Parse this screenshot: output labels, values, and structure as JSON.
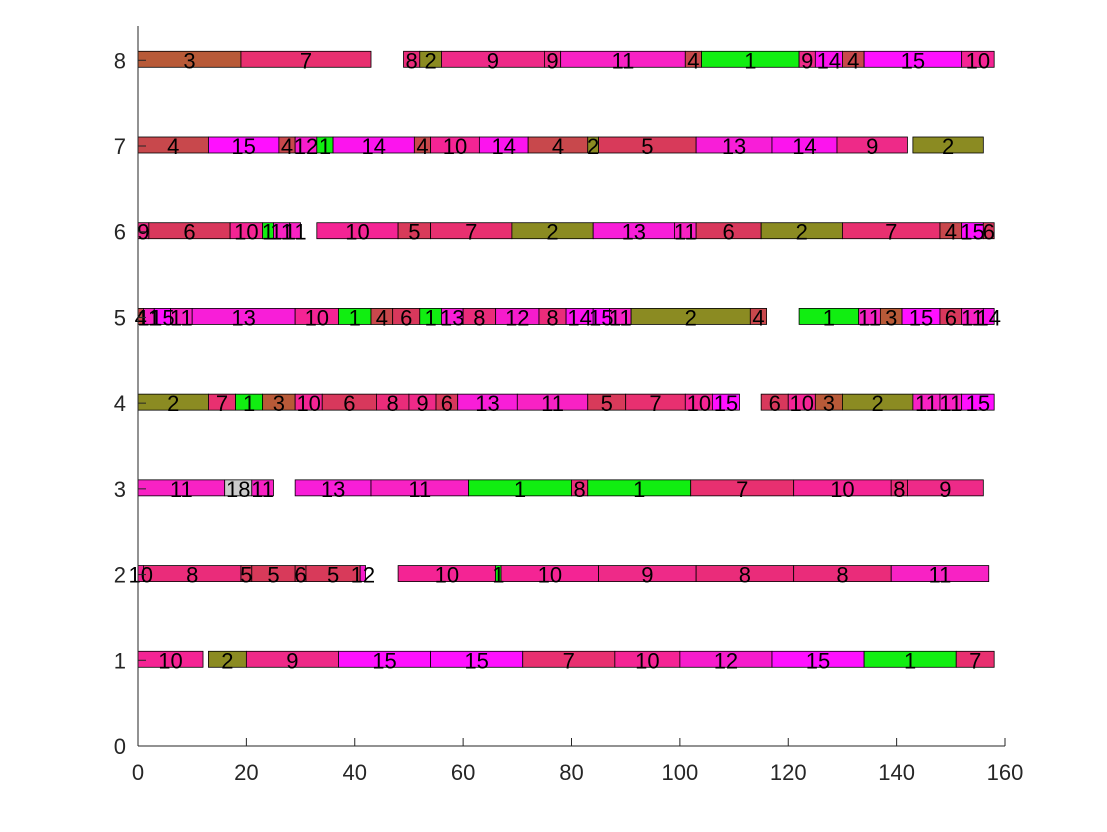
{
  "chart_data": {
    "type": "gantt",
    "title": "",
    "xlabel": "",
    "ylabel": "",
    "xlim": [
      0,
      160
    ],
    "ylim": [
      0,
      8.4
    ],
    "xticks": [
      0,
      20,
      40,
      60,
      80,
      100,
      120,
      140,
      160
    ],
    "yticks": [
      0,
      1,
      2,
      3,
      4,
      5,
      6,
      7,
      8
    ],
    "grid": false,
    "colors": {
      "1": "#11EE11",
      "2": "#8B8B22",
      "3": "#B85A38",
      "4": "#C8484C",
      "5": "#D83A5A",
      "6": "#D8385C",
      "7": "#E83070",
      "8": "#EA2C7A",
      "9": "#EE2A88",
      "10": "#F42494",
      "11": "#F822C4",
      "12": "#F61CCC",
      "13": "#F81ED8",
      "14": "#FC14EE",
      "15": "#FF10FF"
    },
    "rows": [
      {
        "y": 1,
        "tasks": [
          {
            "start": 0,
            "end": 12,
            "job": "10"
          },
          {
            "start": 13,
            "end": 20,
            "job": "2"
          },
          {
            "start": 20,
            "end": 37,
            "job": "9"
          },
          {
            "start": 37,
            "end": 54,
            "job": "15"
          },
          {
            "start": 54,
            "end": 71,
            "job": "15"
          },
          {
            "start": 71,
            "end": 88,
            "job": "7"
          },
          {
            "start": 88,
            "end": 100,
            "job": "10"
          },
          {
            "start": 100,
            "end": 117,
            "job": "12"
          },
          {
            "start": 117,
            "end": 134,
            "job": "15"
          },
          {
            "start": 134,
            "end": 151,
            "job": "1"
          },
          {
            "start": 151,
            "end": 158,
            "job": "7"
          }
        ]
      },
      {
        "y": 2,
        "tasks": [
          {
            "start": 0,
            "end": 1,
            "job": "10"
          },
          {
            "start": 1,
            "end": 19,
            "job": "8"
          },
          {
            "start": 19,
            "end": 21,
            "job": "5"
          },
          {
            "start": 21,
            "end": 29,
            "job": "5"
          },
          {
            "start": 29,
            "end": 31,
            "job": "6"
          },
          {
            "start": 31,
            "end": 41,
            "job": "5"
          },
          {
            "start": 41,
            "end": 42,
            "job": "12"
          },
          {
            "start": 48,
            "end": 66,
            "job": "10"
          },
          {
            "start": 66,
            "end": 67,
            "job": "1"
          },
          {
            "start": 67,
            "end": 85,
            "job": "10"
          },
          {
            "start": 85,
            "end": 103,
            "job": "9"
          },
          {
            "start": 103,
            "end": 121,
            "job": "8"
          },
          {
            "start": 121,
            "end": 139,
            "job": "8"
          },
          {
            "start": 139,
            "end": 157,
            "job": "11"
          }
        ]
      },
      {
        "y": 3,
        "tasks": [
          {
            "start": 0,
            "end": 16,
            "job": "11"
          },
          {
            "start": 16,
            "end": 21,
            "job": "18"
          },
          {
            "start": 21,
            "end": 25,
            "job": "11"
          },
          {
            "start": 29,
            "end": 43,
            "job": "13"
          },
          {
            "start": 43,
            "end": 61,
            "job": "11"
          },
          {
            "start": 61,
            "end": 80,
            "job": "1"
          },
          {
            "start": 80,
            "end": 83,
            "job": "8"
          },
          {
            "start": 83,
            "end": 102,
            "job": "1"
          },
          {
            "start": 102,
            "end": 121,
            "job": "7"
          },
          {
            "start": 121,
            "end": 139,
            "job": "10"
          },
          {
            "start": 139,
            "end": 142,
            "job": "8"
          },
          {
            "start": 142,
            "end": 156,
            "job": "9"
          }
        ]
      },
      {
        "y": 4,
        "tasks": [
          {
            "start": 0,
            "end": 13,
            "job": "2"
          },
          {
            "start": 13,
            "end": 18,
            "job": "7"
          },
          {
            "start": 18,
            "end": 23,
            "job": "1"
          },
          {
            "start": 23,
            "end": 29,
            "job": "3"
          },
          {
            "start": 29,
            "end": 34,
            "job": "10"
          },
          {
            "start": 34,
            "end": 44,
            "job": "6"
          },
          {
            "start": 44,
            "end": 50,
            "job": "8"
          },
          {
            "start": 50,
            "end": 55,
            "job": "9"
          },
          {
            "start": 55,
            "end": 59,
            "job": "6"
          },
          {
            "start": 59,
            "end": 70,
            "job": "13"
          },
          {
            "start": 70,
            "end": 83,
            "job": "11"
          },
          {
            "start": 83,
            "end": 90,
            "job": "5"
          },
          {
            "start": 90,
            "end": 101,
            "job": "7"
          },
          {
            "start": 101,
            "end": 106,
            "job": "10"
          },
          {
            "start": 106,
            "end": 111,
            "job": "15"
          },
          {
            "start": 115,
            "end": 120,
            "job": "6"
          },
          {
            "start": 120,
            "end": 125,
            "job": "10"
          },
          {
            "start": 125,
            "end": 130,
            "job": "3"
          },
          {
            "start": 130,
            "end": 143,
            "job": "2"
          },
          {
            "start": 143,
            "end": 148,
            "job": "11"
          },
          {
            "start": 148,
            "end": 152,
            "job": "11"
          },
          {
            "start": 152,
            "end": 158,
            "job": "15"
          }
        ]
      },
      {
        "y": 5,
        "tasks": [
          {
            "start": 0,
            "end": 1,
            "job": "4"
          },
          {
            "start": 1,
            "end": 3,
            "job": "11"
          },
          {
            "start": 3,
            "end": 6,
            "job": "15"
          },
          {
            "start": 6,
            "end": 10,
            "job": "11"
          },
          {
            "start": 10,
            "end": 29,
            "job": "13"
          },
          {
            "start": 29,
            "end": 37,
            "job": "10"
          },
          {
            "start": 37,
            "end": 43,
            "job": "1"
          },
          {
            "start": 43,
            "end": 47,
            "job": "4"
          },
          {
            "start": 47,
            "end": 52,
            "job": "6"
          },
          {
            "start": 52,
            "end": 56,
            "job": "1"
          },
          {
            "start": 56,
            "end": 60,
            "job": "13"
          },
          {
            "start": 60,
            "end": 66,
            "job": "8"
          },
          {
            "start": 66,
            "end": 74,
            "job": "12"
          },
          {
            "start": 74,
            "end": 79,
            "job": "8"
          },
          {
            "start": 79,
            "end": 84,
            "job": "14"
          },
          {
            "start": 84,
            "end": 87,
            "job": "15"
          },
          {
            "start": 87,
            "end": 91,
            "job": "11"
          },
          {
            "start": 91,
            "end": 113,
            "job": "2"
          },
          {
            "start": 113,
            "end": 116,
            "job": "4"
          },
          {
            "start": 122,
            "end": 133,
            "job": "1"
          },
          {
            "start": 133,
            "end": 137,
            "job": "11"
          },
          {
            "start": 137,
            "end": 141,
            "job": "3"
          },
          {
            "start": 141,
            "end": 148,
            "job": "15"
          },
          {
            "start": 148,
            "end": 152,
            "job": "6"
          },
          {
            "start": 152,
            "end": 156,
            "job": "11"
          },
          {
            "start": 156,
            "end": 158,
            "job": "14"
          }
        ]
      },
      {
        "y": 6,
        "tasks": [
          {
            "start": 0,
            "end": 2,
            "job": "9"
          },
          {
            "start": 2,
            "end": 17,
            "job": "6"
          },
          {
            "start": 17,
            "end": 23,
            "job": "10"
          },
          {
            "start": 23,
            "end": 25,
            "job": "1"
          },
          {
            "start": 25,
            "end": 28,
            "job": "11"
          },
          {
            "start": 28,
            "end": 30,
            "job": "11"
          },
          {
            "start": 33,
            "end": 48,
            "job": "10"
          },
          {
            "start": 48,
            "end": 54,
            "job": "5"
          },
          {
            "start": 54,
            "end": 69,
            "job": "7"
          },
          {
            "start": 69,
            "end": 84,
            "job": "2"
          },
          {
            "start": 84,
            "end": 99,
            "job": "13"
          },
          {
            "start": 99,
            "end": 103,
            "job": "11"
          },
          {
            "start": 103,
            "end": 115,
            "job": "6"
          },
          {
            "start": 115,
            "end": 130,
            "job": "2"
          },
          {
            "start": 130,
            "end": 148,
            "job": "7"
          },
          {
            "start": 148,
            "end": 152,
            "job": "4"
          },
          {
            "start": 152,
            "end": 156,
            "job": "15"
          },
          {
            "start": 156,
            "end": 158,
            "job": "6"
          }
        ]
      },
      {
        "y": 7,
        "tasks": [
          {
            "start": 0,
            "end": 13,
            "job": "4"
          },
          {
            "start": 13,
            "end": 26,
            "job": "15"
          },
          {
            "start": 26,
            "end": 29,
            "job": "4"
          },
          {
            "start": 29,
            "end": 33,
            "job": "12"
          },
          {
            "start": 33,
            "end": 36,
            "job": "1"
          },
          {
            "start": 36,
            "end": 51,
            "job": "14"
          },
          {
            "start": 51,
            "end": 54,
            "job": "4"
          },
          {
            "start": 54,
            "end": 63,
            "job": "10"
          },
          {
            "start": 63,
            "end": 72,
            "job": "14"
          },
          {
            "start": 72,
            "end": 83,
            "job": "4"
          },
          {
            "start": 83,
            "end": 85,
            "job": "2"
          },
          {
            "start": 85,
            "end": 103,
            "job": "5"
          },
          {
            "start": 103,
            "end": 117,
            "job": "13"
          },
          {
            "start": 117,
            "end": 129,
            "job": "14"
          },
          {
            "start": 129,
            "end": 142,
            "job": "9"
          },
          {
            "start": 143,
            "end": 156,
            "job": "2"
          }
        ]
      },
      {
        "y": 8,
        "tasks": [
          {
            "start": 0,
            "end": 19,
            "job": "3"
          },
          {
            "start": 19,
            "end": 43,
            "job": "7"
          },
          {
            "start": 49,
            "end": 52,
            "job": "8"
          },
          {
            "start": 52,
            "end": 56,
            "job": "2"
          },
          {
            "start": 56,
            "end": 75,
            "job": "9"
          },
          {
            "start": 75,
            "end": 78,
            "job": "9"
          },
          {
            "start": 78,
            "end": 101,
            "job": "11"
          },
          {
            "start": 101,
            "end": 104,
            "job": "4"
          },
          {
            "start": 104,
            "end": 122,
            "job": "1"
          },
          {
            "start": 122,
            "end": 125,
            "job": "9"
          },
          {
            "start": 125,
            "end": 130,
            "job": "14"
          },
          {
            "start": 130,
            "end": 134,
            "job": "4"
          },
          {
            "start": 134,
            "end": 152,
            "job": "15"
          },
          {
            "start": 152,
            "end": 158,
            "job": "10"
          }
        ]
      }
    ]
  }
}
